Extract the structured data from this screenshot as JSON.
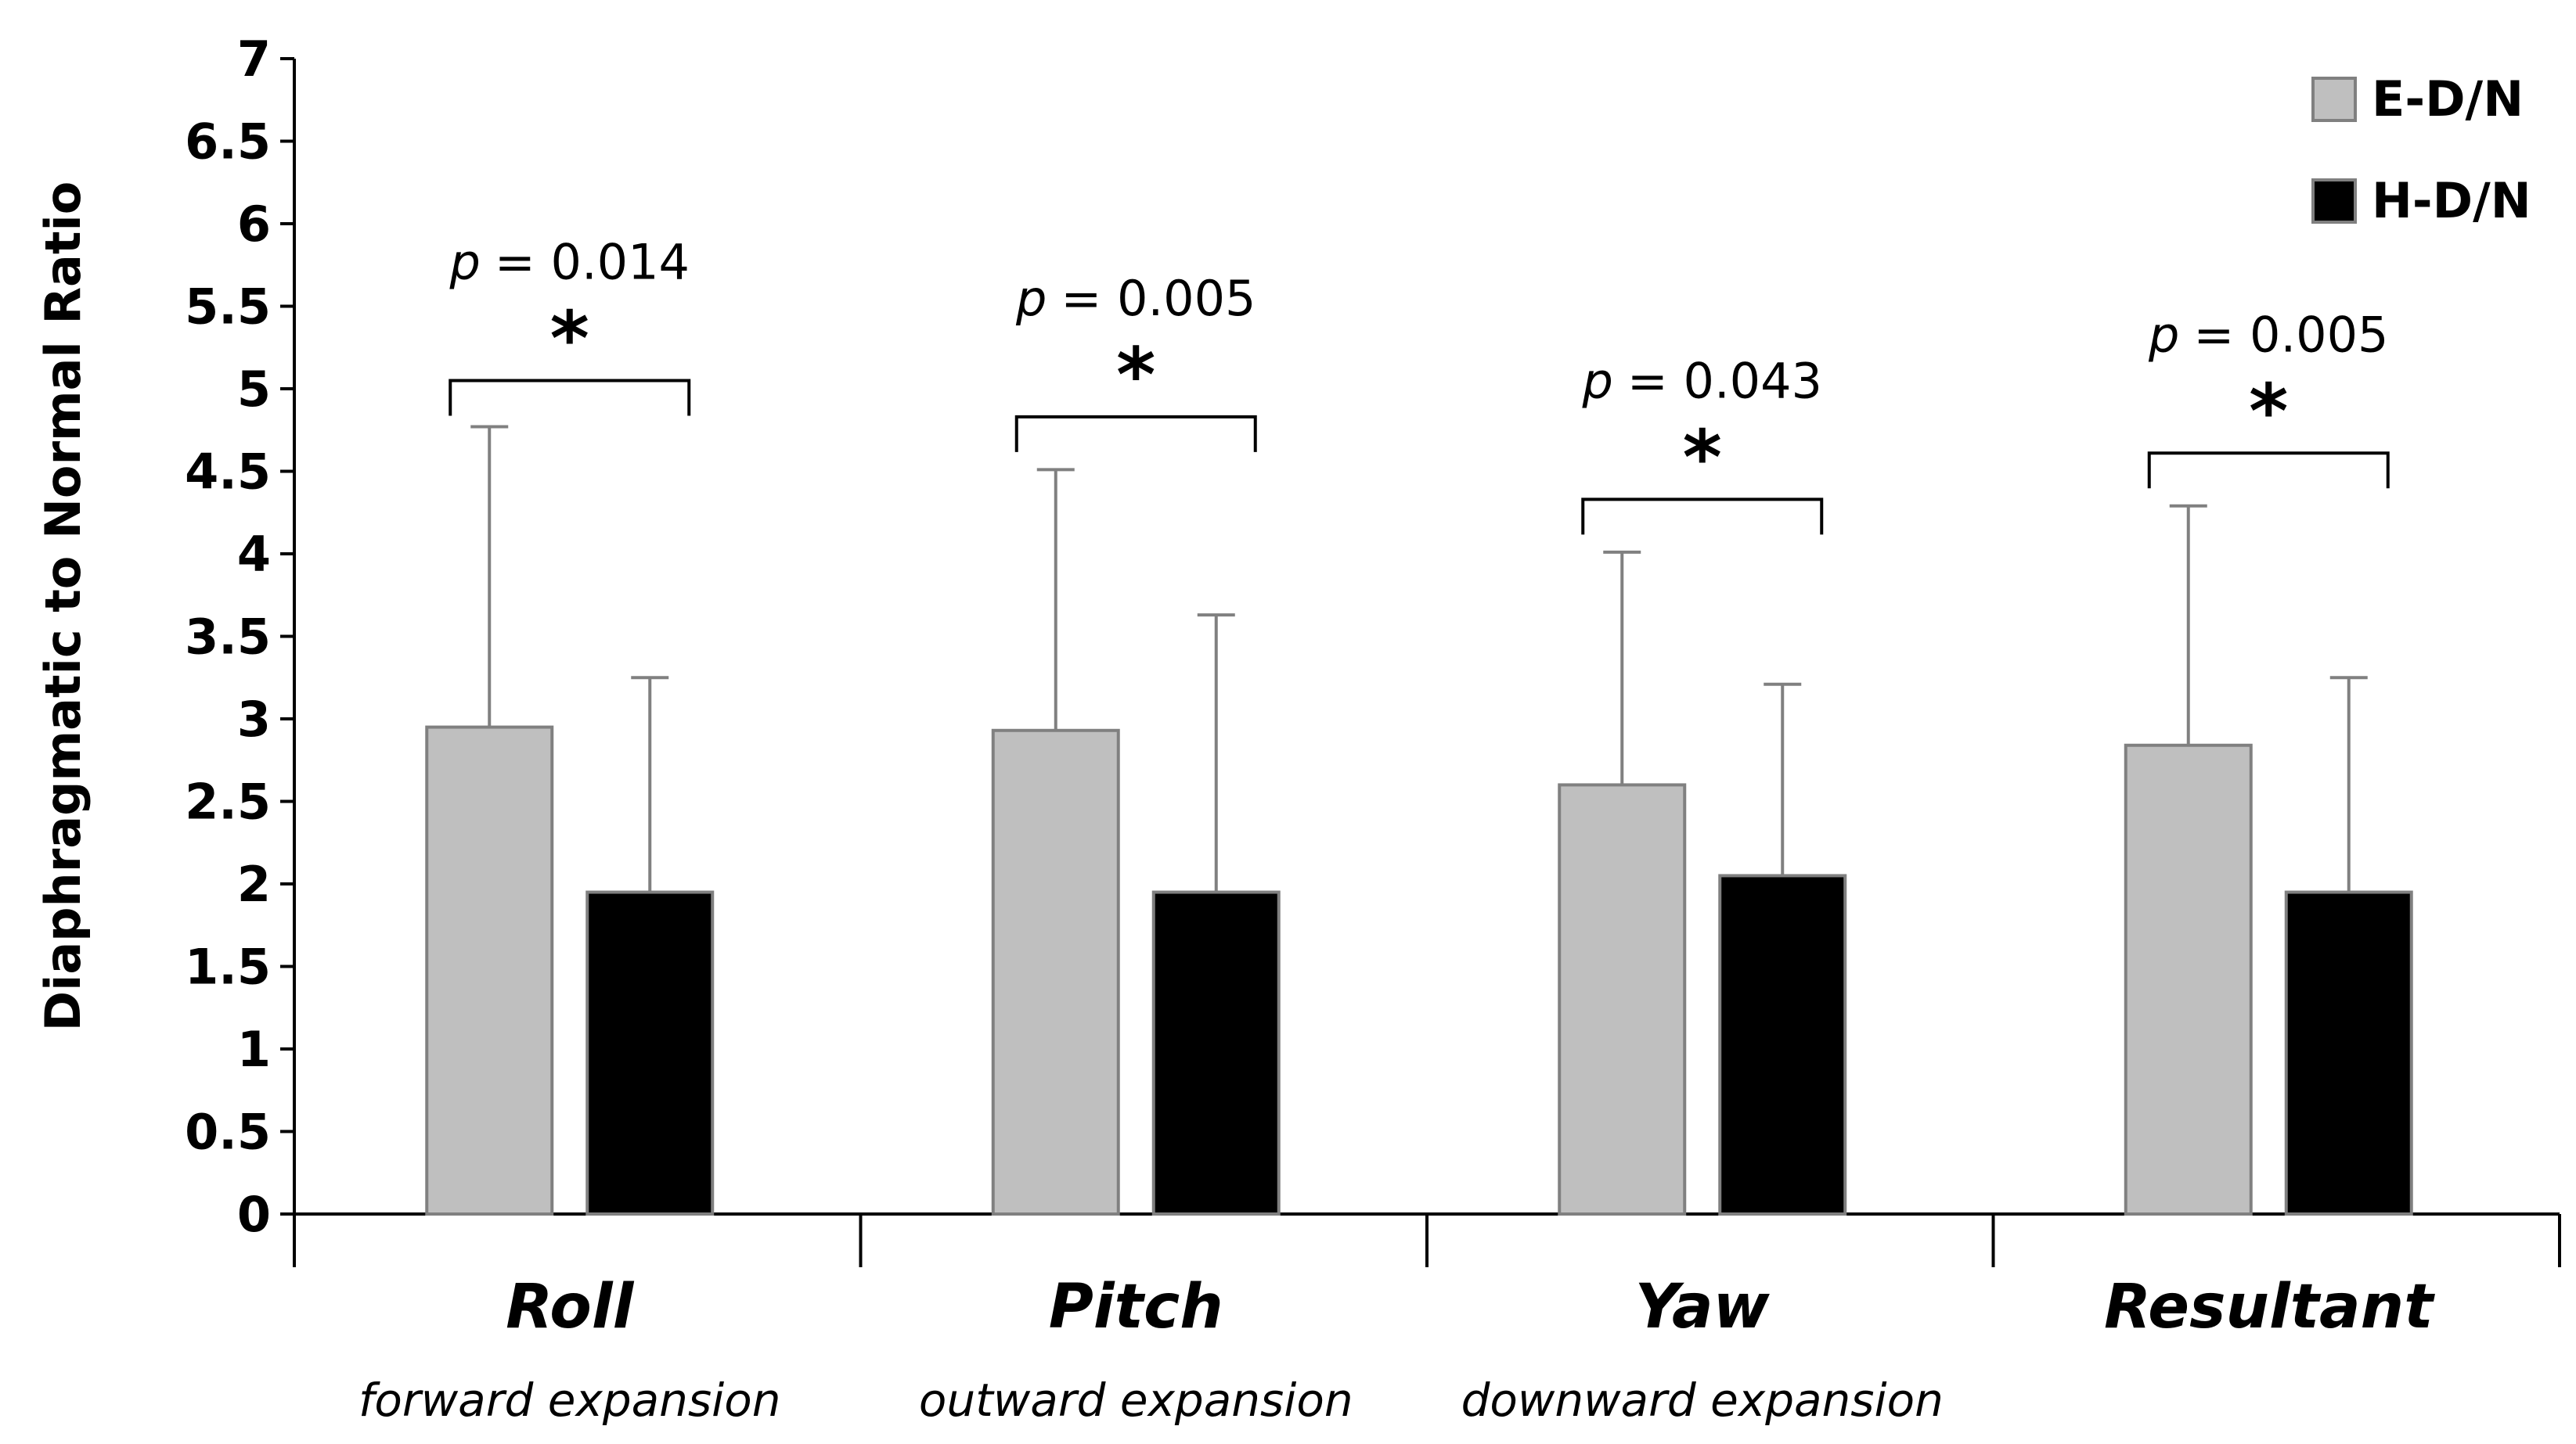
{
  "chart_data": {
    "type": "bar",
    "title": "",
    "xlabel": "",
    "ylabel": "Diaphragmatic to Normal Ratio",
    "ylim": [
      0,
      7
    ],
    "yticks": [
      0,
      0.5,
      1,
      1.5,
      2,
      2.5,
      3,
      3.5,
      4,
      4.5,
      5,
      5.5,
      6,
      6.5,
      7
    ],
    "ytick_labels": [
      "0",
      "0.5",
      "1",
      "1.5",
      "2",
      "2.5",
      "3",
      "3.5",
      "4",
      "4.5",
      "5",
      "5.5",
      "6",
      "6.5",
      "7"
    ],
    "grid": false,
    "legend_position": "top-right",
    "categories": [
      "Roll",
      "Pitch",
      "Yaw",
      "Resultant"
    ],
    "category_subtitles": [
      "forward expansion",
      "outward expansion",
      "downward expansion",
      ""
    ],
    "series": [
      {
        "name": "E-D/N",
        "color": "#bfbfbf",
        "values": [
          2.95,
          2.93,
          2.6,
          2.84
        ],
        "error_upper": [
          4.77,
          4.51,
          4.01,
          4.29
        ]
      },
      {
        "name": "H-D/N",
        "color": "#000000",
        "values": [
          1.95,
          1.95,
          2.05,
          1.95
        ],
        "error_upper": [
          3.25,
          3.63,
          3.21,
          3.25
        ]
      }
    ],
    "annotations": [
      {
        "category": "Roll",
        "p_prefix": "p",
        "p_value": "= 0.014",
        "symbol": "*",
        "bracket_y": 5.05
      },
      {
        "category": "Pitch",
        "p_prefix": "p",
        "p_value": "= 0.005",
        "symbol": "*",
        "bracket_y": 4.83
      },
      {
        "category": "Yaw",
        "p_prefix": "p",
        "p_value": "= 0.043",
        "symbol": "*",
        "bracket_y": 4.33
      },
      {
        "category": "Resultant",
        "p_prefix": "p",
        "p_value": "= 0.005",
        "symbol": "*",
        "bracket_y": 4.61
      }
    ]
  }
}
